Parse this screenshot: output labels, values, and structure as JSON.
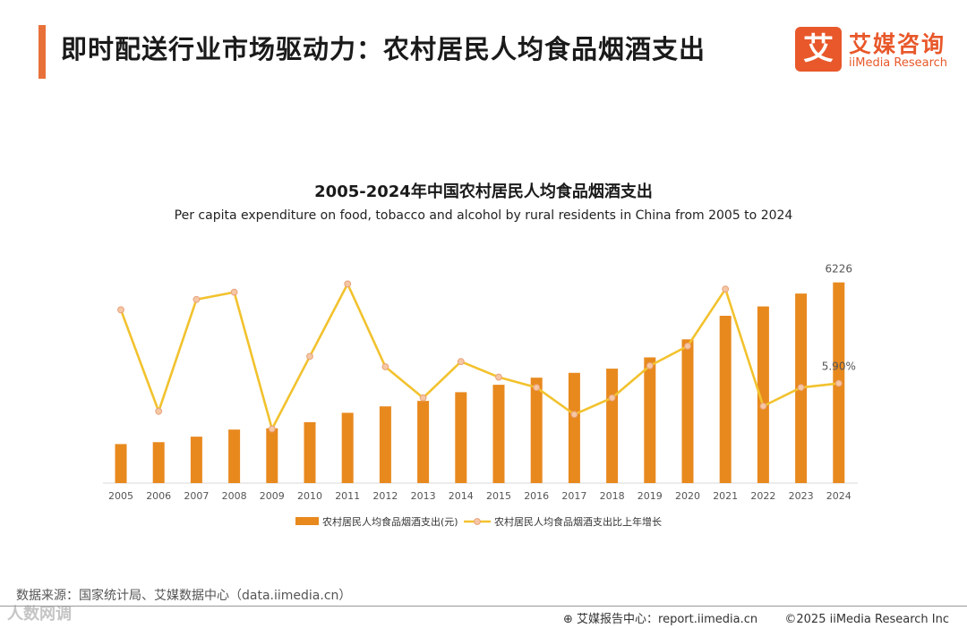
{
  "header": {
    "title": "即时配送行业市场驱动力：农村居民人均食品烟酒支出"
  },
  "logo": {
    "mark": "艾",
    "name_cn": "艾媒咨询",
    "name_en": "iiMedia Research"
  },
  "chart_data": {
    "type": "bar",
    "title": "2005-2024年中国农村居民人均食品烟酒支出",
    "subtitle": "Per capita expenditure on food, tobacco and alcohol by rural residents in China from 2005 to 2024",
    "categories": [
      "2005",
      "2006",
      "2007",
      "2008",
      "2009",
      "2010",
      "2011",
      "2012",
      "2013",
      "2014",
      "2015",
      "2016",
      "2017",
      "2018",
      "2019",
      "2020",
      "2021",
      "2022",
      "2023",
      "2024"
    ],
    "series": [
      {
        "name": "农村居民人均食品烟酒支出(元)",
        "type": "bar",
        "color": "#e8891e",
        "values": [
          1210,
          1270,
          1440,
          1660,
          1700,
          1890,
          2180,
          2380,
          2550,
          2820,
          3050,
          3270,
          3420,
          3550,
          3900,
          4460,
          5190,
          5480,
          5880,
          6226
        ]
      },
      {
        "name": "农村居民人均食品烟酒支出比上年增长",
        "type": "line",
        "color": "#f2c22e",
        "values": [
          13.0,
          3.2,
          14.0,
          14.7,
          1.5,
          8.5,
          15.5,
          7.5,
          4.5,
          8.0,
          6.5,
          5.5,
          2.9,
          4.5,
          7.6,
          9.5,
          15.0,
          3.7,
          5.5,
          5.9
        ]
      }
    ],
    "annotations": {
      "last_bar_label": "6226",
      "last_line_label": "5.90%"
    },
    "ylim_bars": [
      0,
      6800
    ],
    "ylim_line": [
      -2,
      17
    ],
    "legend": "bottom-center",
    "grid": false
  },
  "footer": {
    "source": "数据来源：国家统计局、艾媒数据中心（data.iimedia.cn）",
    "watermark": "人数网调",
    "report_site": "艾媒报告中心：report.iimedia.cn",
    "copyright": "©2025  iiMedia Research  Inc"
  }
}
